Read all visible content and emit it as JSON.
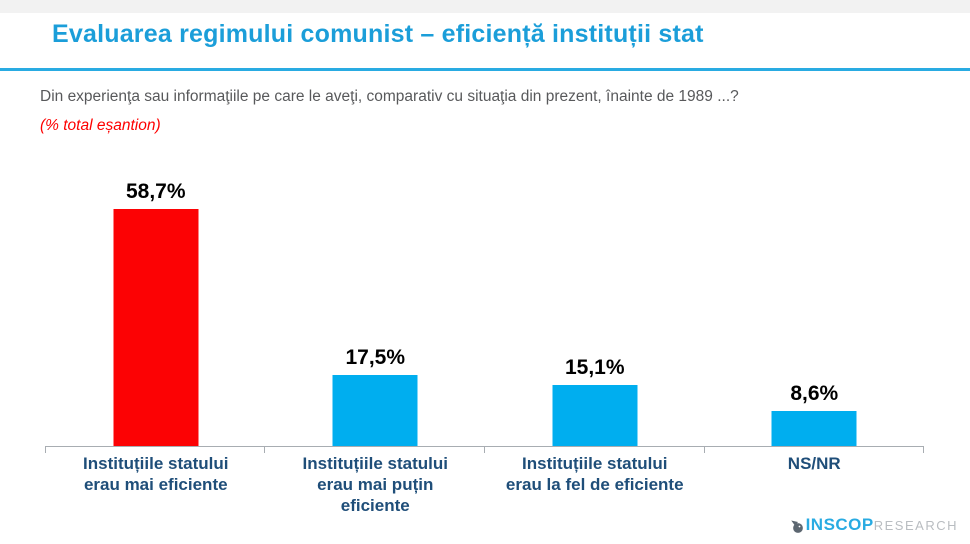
{
  "title": "Evaluarea regimului comunist – eficiență instituții stat",
  "subtitle": "Din experienţa sau informaţiile pe care le aveţi, comparativ cu situaţia din prezent, înainte de 1989 ...?",
  "note": "(% total eșantion)",
  "colors": {
    "title_text": "#1b9ed9",
    "title_rule": "#29abe2",
    "bar_highlight": "#fc0204",
    "bar_default": "#00aeef",
    "category_label": "#1f4e79",
    "value_label": "#000000",
    "question_text": "#58595b",
    "note_text": "#fe0000",
    "axis": "#a8adb2"
  },
  "chart_data": {
    "type": "bar",
    "title": "Evaluarea regimului comunist – eficiență instituții stat",
    "xlabel": "",
    "ylabel": "% total eșantion",
    "ylim": [
      0,
      65
    ],
    "grid": false,
    "legend": false,
    "categories": [
      "Instituțiile statului erau mai eficiente",
      "Instituțiile statului erau mai puțin eficiente",
      "Instituțiile statului erau la fel de eficiente",
      "NS/NR"
    ],
    "category_lines": [
      "Instituțiile statului\nerau mai eficiente",
      "Instituțiile statului\nerau mai puțin\neficiente",
      "Instituțiile statului\nerau la fel de eficiente",
      "NS/NR"
    ],
    "values": [
      58.7,
      17.5,
      15.1,
      8.6
    ],
    "value_labels": [
      "58,7%",
      "17,5%",
      "15,1%",
      "8,6%"
    ],
    "bar_colors": [
      "#fc0204",
      "#00aeef",
      "#00aeef",
      "#00aeef"
    ]
  },
  "logo": {
    "icon": "bird-icon",
    "name": "INSCOP",
    "suffix": "RESEARCH"
  }
}
